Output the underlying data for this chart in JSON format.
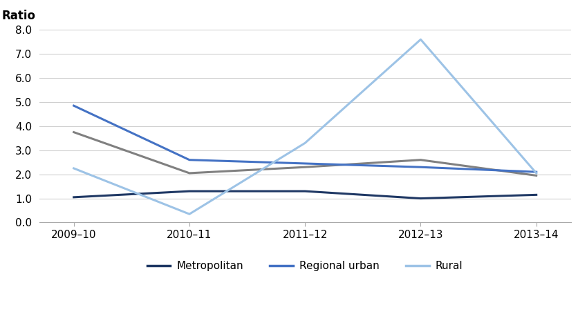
{
  "x_labels": [
    "2009–10",
    "2010–11",
    "2011–12",
    "2012–13",
    "2013–14"
  ],
  "x_positions": [
    0,
    1,
    2,
    3,
    4
  ],
  "series": [
    {
      "name": "Metropolitan",
      "color": "#1f3864",
      "values": [
        1.05,
        1.3,
        1.3,
        1.0,
        1.15
      ],
      "linewidth": 2.2
    },
    {
      "name": "Regional urban",
      "color": "#4472c4",
      "values": [
        4.85,
        2.6,
        2.45,
        2.3,
        2.1
      ],
      "linewidth": 2.2
    },
    {
      "name": "Rural",
      "color": "#9dc3e6",
      "values": [
        2.25,
        0.35,
        3.3,
        7.6,
        2.05
      ],
      "linewidth": 2.2
    }
  ],
  "gray_series": {
    "values": [
      3.75,
      2.05,
      2.3,
      2.6,
      1.95
    ],
    "color": "#808080",
    "linewidth": 2.2
  },
  "ylabel": "Ratio",
  "ylim": [
    0.0,
    8.0
  ],
  "yticks": [
    0.0,
    1.0,
    2.0,
    3.0,
    4.0,
    5.0,
    6.0,
    7.0,
    8.0
  ],
  "background_color": "#ffffff",
  "grid_color": "#d0d0d0",
  "tick_fontsize": 11,
  "label_fontsize": 12
}
